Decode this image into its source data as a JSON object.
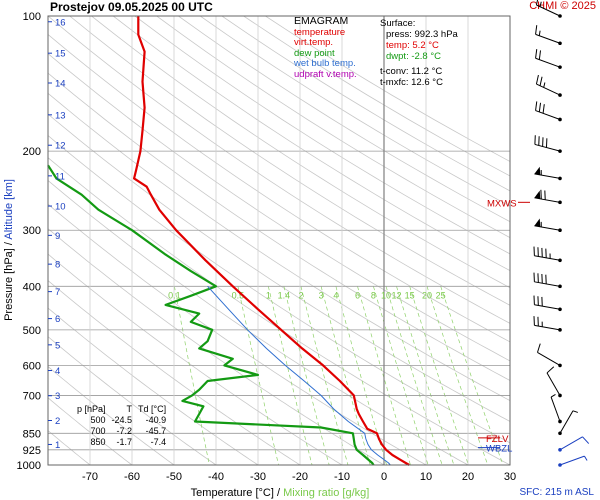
{
  "header": {
    "title": "Prostejov    09.05.2025 00 UTC",
    "credit": "CHMI © 2025",
    "sfc": "SFC: 215 m ASL"
  },
  "legend": {
    "title": "EMAGRAM",
    "items": [
      {
        "label": "temperature",
        "color": "#e00000"
      },
      {
        "label": "virt.temp.",
        "color": "#e00000"
      },
      {
        "label": "dew point",
        "color": "#139a13"
      },
      {
        "label": "wet bulb temp.",
        "color": "#2f6fd0"
      },
      {
        "label": "udpraft v.temp.",
        "color": "#b000b0"
      }
    ]
  },
  "surface": {
    "heading": "Surface:",
    "press": "press: 992.3 hPa",
    "temp": "temp: 5.2 °C",
    "dwpt": "dwpt: -2.8 °C",
    "tconv": "t-conv: 11.2 °C",
    "tmxfc": "t-mxfc: 12.6 °C"
  },
  "levels_table": {
    "headers": [
      "p [hPa]",
      "T",
      "Td [°C]"
    ],
    "rows": [
      [
        "500",
        "-24.5",
        "-40.9"
      ],
      [
        "700",
        "-7.2",
        "-45.7"
      ],
      [
        "850",
        "-1.7",
        "-7.4"
      ]
    ]
  },
  "markers": {
    "mxws": "MXWS",
    "fzl": "FZLV",
    "wbzl": "WBZL"
  },
  "chart_data": {
    "type": "line",
    "x_label_temperature": "Temperature [°C]",
    "x_label_sep": "/",
    "x_label_mixing": "Mixing ratio [g/kg]",
    "y_label_pressure": "Pressure [hPa]",
    "y_label_sep": "/",
    "y_label_altitude": "Altitude [km]",
    "x_range": [
      -80,
      30
    ],
    "y_range_hpa": [
      1000,
      100
    ],
    "y_scale": "log",
    "x_ticks": [
      -70,
      -60,
      -50,
      -40,
      -30,
      -20,
      -10,
      0,
      10,
      20,
      30
    ],
    "p_ticks": [
      100,
      200,
      300,
      400,
      500,
      600,
      700,
      850,
      925,
      1000
    ],
    "altitude_ticks_km": [
      "1",
      "2",
      "3",
      "4",
      "5",
      "6",
      "7",
      "8",
      "9",
      "10",
      "11",
      "12",
      "13",
      "14",
      "15",
      "16"
    ],
    "mixing_ratio_labels": [
      "0.1",
      "0.5",
      "1",
      "1.4",
      "2",
      "3",
      "4",
      "6",
      "8",
      "10",
      "12",
      "15",
      "20",
      "25"
    ],
    "series": [
      {
        "name": "temperature",
        "color": "#e00000",
        "points": [
          [
            1000,
            6.0
          ],
          [
            990,
            5.2
          ],
          [
            975,
            4.0
          ],
          [
            950,
            2.0
          ],
          [
            925,
            0.5
          ],
          [
            900,
            -0.5
          ],
          [
            875,
            -1.2
          ],
          [
            850,
            -1.7
          ],
          [
            830,
            -4.0
          ],
          [
            800,
            -5.0
          ],
          [
            770,
            -6.0
          ],
          [
            750,
            -6.5
          ],
          [
            700,
            -7.2
          ],
          [
            650,
            -10.5
          ],
          [
            600,
            -14.5
          ],
          [
            550,
            -19.5
          ],
          [
            500,
            -24.5
          ],
          [
            450,
            -30.0
          ],
          [
            400,
            -36.0
          ],
          [
            350,
            -42.5
          ],
          [
            300,
            -49.5
          ],
          [
            270,
            -53.5
          ],
          [
            250,
            -55.5
          ],
          [
            240,
            -56.5
          ],
          [
            230,
            -59.5
          ],
          [
            220,
            -59.0
          ],
          [
            200,
            -58.0
          ],
          [
            180,
            -57.5
          ],
          [
            160,
            -57.0
          ],
          [
            140,
            -57.5
          ],
          [
            120,
            -57.0
          ],
          [
            110,
            -58.5
          ],
          [
            100,
            -58.5
          ]
        ]
      },
      {
        "name": "dew point",
        "color": "#139a13",
        "points": [
          [
            1000,
            -2.5
          ],
          [
            990,
            -2.8
          ],
          [
            950,
            -5.0
          ],
          [
            925,
            -6.5
          ],
          [
            900,
            -7.0
          ],
          [
            875,
            -7.2
          ],
          [
            850,
            -7.4
          ],
          [
            825,
            -15.0
          ],
          [
            800,
            -45.0
          ],
          [
            770,
            -44.0
          ],
          [
            740,
            -43.0
          ],
          [
            720,
            -48.0
          ],
          [
            700,
            -45.7
          ],
          [
            680,
            -44.0
          ],
          [
            650,
            -42.0
          ],
          [
            630,
            -30.0
          ],
          [
            600,
            -38.0
          ],
          [
            580,
            -36.0
          ],
          [
            550,
            -44.0
          ],
          [
            530,
            -42.0
          ],
          [
            500,
            -40.9
          ],
          [
            480,
            -46.0
          ],
          [
            460,
            -44.0
          ],
          [
            440,
            -52.0
          ],
          [
            420,
            -46.0
          ],
          [
            400,
            -40.0
          ],
          [
            370,
            -46.0
          ],
          [
            340,
            -52.0
          ],
          [
            300,
            -60.0
          ],
          [
            270,
            -68.0
          ],
          [
            250,
            -72.0
          ],
          [
            230,
            -78.0
          ],
          [
            215,
            -80.0
          ]
        ]
      },
      {
        "name": "wet bulb temp.",
        "color": "#2f6fd0",
        "points": [
          [
            1000,
            1.5
          ],
          [
            990,
            1.1
          ],
          [
            950,
            -1.5
          ],
          [
            925,
            -3.0
          ],
          [
            900,
            -3.8
          ],
          [
            875,
            -4.3
          ],
          [
            850,
            -4.6
          ],
          [
            800,
            -8.5
          ],
          [
            750,
            -12.0
          ],
          [
            700,
            -15.0
          ],
          [
            650,
            -19.0
          ],
          [
            600,
            -23.5
          ],
          [
            550,
            -28.0
          ],
          [
            500,
            -32.5
          ],
          [
            450,
            -37.0
          ],
          [
            400,
            -42.0
          ]
        ]
      }
    ],
    "wind_barbs": [
      {
        "p": 1000,
        "dir": 70,
        "kt": 5
      },
      {
        "p": 925,
        "dir": 60,
        "kt": 10
      },
      {
        "p": 850,
        "dir": 30,
        "kt": 5
      },
      {
        "p": 800,
        "dir": 340,
        "kt": 5
      },
      {
        "p": 700,
        "dir": 330,
        "kt": 10
      },
      {
        "p": 600,
        "dir": 300,
        "kt": 10
      },
      {
        "p": 500,
        "dir": 280,
        "kt": 25
      },
      {
        "p": 450,
        "dir": 280,
        "kt": 30
      },
      {
        "p": 400,
        "dir": 280,
        "kt": 40
      },
      {
        "p": 350,
        "dir": 280,
        "kt": 45
      },
      {
        "p": 300,
        "dir": 280,
        "kt": 55
      },
      {
        "p": 260,
        "dir": 280,
        "kt": 70
      },
      {
        "p": 230,
        "dir": 280,
        "kt": 55
      },
      {
        "p": 200,
        "dir": 285,
        "kt": 40
      },
      {
        "p": 170,
        "dir": 290,
        "kt": 30
      },
      {
        "p": 150,
        "dir": 295,
        "kt": 25
      },
      {
        "p": 130,
        "dir": 290,
        "kt": 20
      },
      {
        "p": 115,
        "dir": 290,
        "kt": 15
      },
      {
        "p": 100,
        "dir": 295,
        "kt": 15
      }
    ]
  }
}
